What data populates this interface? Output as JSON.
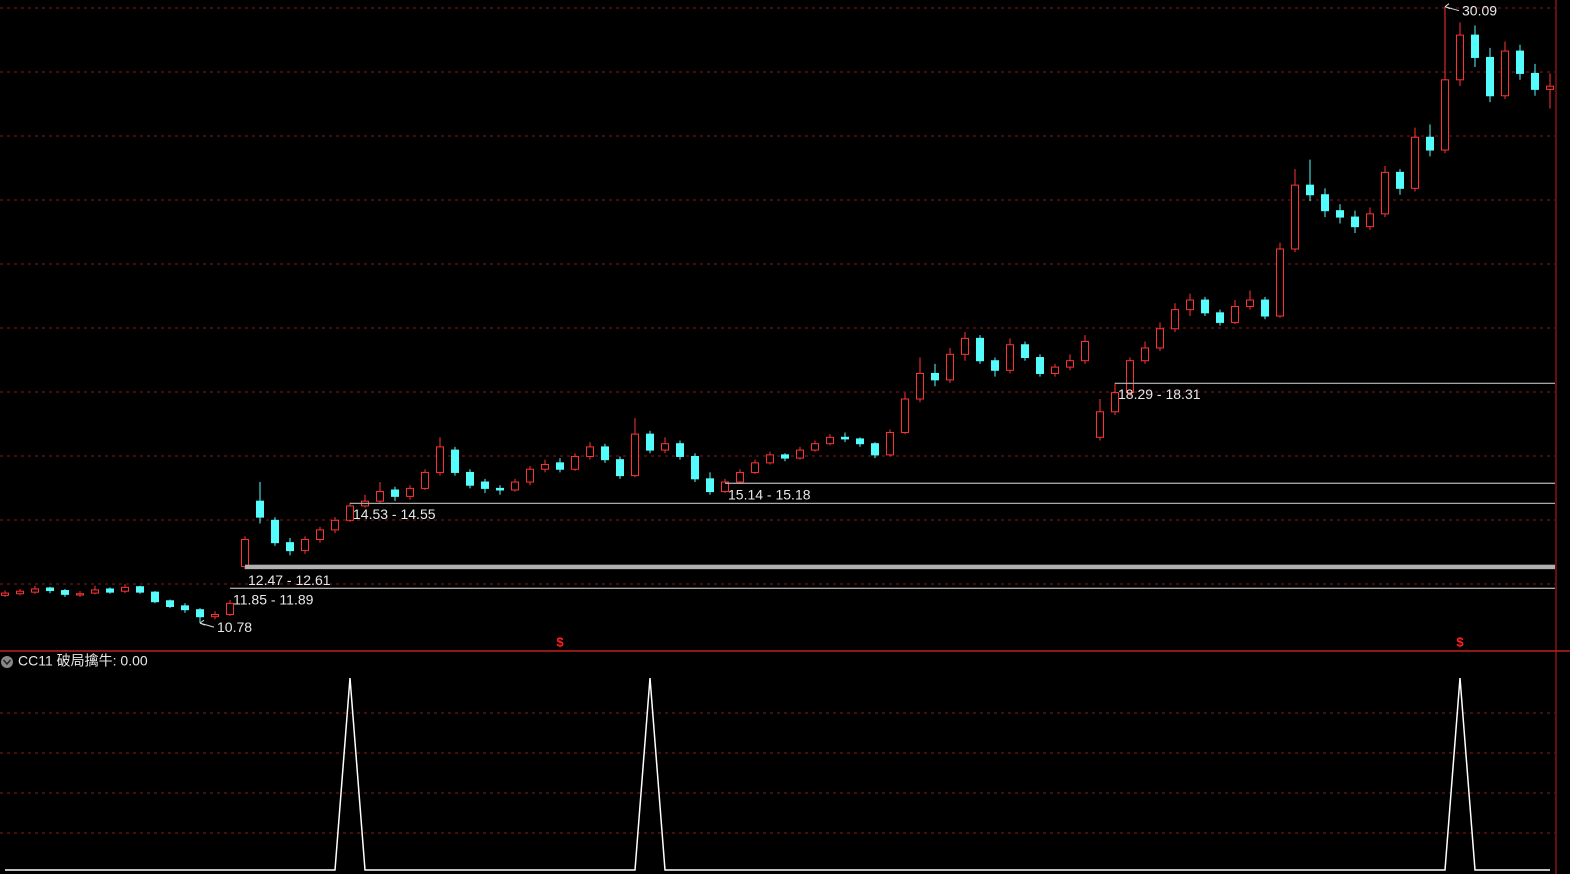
{
  "chart_data": {
    "type": "candlestick",
    "ylim": [
      10,
      30.3
    ],
    "grid": true,
    "up_color": "#ff3232",
    "down_color": "#54fcfc",
    "open": [
      11.65,
      11.7,
      11.75,
      11.88,
      11.8,
      11.66,
      11.72,
      11.85,
      11.78,
      11.92,
      11.75,
      11.48,
      11.32,
      11.2,
      10.98,
      11.05,
      12.55,
      14.6,
      14.0,
      13.3,
      13.05,
      13.4,
      13.7,
      14.0,
      14.45,
      14.6,
      14.95,
      14.75,
      15.0,
      15.5,
      16.2,
      15.5,
      15.2,
      15.0,
      14.95,
      15.2,
      15.6,
      15.8,
      15.6,
      16.0,
      16.3,
      15.9,
      15.4,
      16.7,
      16.2,
      16.4,
      16.0,
      15.3,
      14.9,
      15.2,
      15.5,
      15.8,
      16.05,
      15.95,
      16.2,
      16.4,
      16.6,
      16.55,
      16.4,
      16.05,
      16.75,
      17.8,
      18.6,
      18.4,
      19.2,
      19.7,
      19.0,
      18.7,
      19.5,
      19.1,
      18.6,
      18.8,
      19.0,
      16.6,
      17.4,
      18.0,
      19.0,
      19.4,
      20.0,
      20.6,
      20.9,
      20.5,
      20.2,
      20.7,
      20.9,
      20.4,
      22.5,
      24.5,
      24.2,
      23.7,
      23.5,
      23.2,
      23.6,
      24.9,
      24.4,
      26.0,
      25.6,
      27.8,
      29.2,
      28.5,
      27.3,
      28.7,
      28.0,
      27.5
    ],
    "high": [
      11.8,
      11.85,
      11.95,
      11.92,
      11.85,
      11.78,
      11.95,
      11.9,
      12.0,
      11.95,
      11.78,
      11.52,
      11.4,
      11.25,
      11.15,
      11.5,
      13.5,
      15.2,
      14.1,
      13.45,
      13.5,
      13.8,
      14.1,
      14.55,
      14.8,
      15.2,
      15.05,
      15.1,
      15.6,
      16.6,
      16.3,
      15.6,
      15.3,
      15.1,
      15.3,
      15.7,
      15.9,
      15.95,
      16.1,
      16.45,
      16.4,
      16.0,
      17.2,
      16.8,
      16.6,
      16.5,
      16.1,
      15.5,
      15.3,
      15.6,
      15.9,
      16.15,
      16.1,
      16.3,
      16.5,
      16.7,
      16.75,
      16.6,
      16.45,
      16.85,
      18.0,
      19.1,
      18.9,
      19.4,
      19.9,
      19.8,
      19.1,
      19.7,
      19.6,
      19.2,
      18.9,
      19.2,
      19.8,
      17.8,
      18.31,
      19.1,
      19.6,
      20.2,
      20.8,
      21.1,
      21.0,
      20.6,
      20.9,
      21.2,
      21.0,
      22.7,
      25.0,
      25.3,
      24.4,
      23.9,
      23.7,
      23.8,
      25.1,
      25.0,
      26.3,
      26.4,
      30.09,
      29.6,
      29.5,
      28.8,
      29.0,
      28.9,
      28.3,
      28.0
    ],
    "low": [
      11.6,
      11.65,
      11.7,
      11.72,
      11.6,
      11.6,
      11.68,
      11.7,
      11.72,
      11.7,
      11.4,
      11.25,
      11.1,
      10.78,
      10.9,
      11.0,
      12.47,
      13.9,
      13.2,
      12.9,
      12.95,
      13.3,
      13.6,
      13.95,
      14.4,
      14.55,
      14.6,
      14.65,
      14.95,
      15.4,
      15.4,
      15.0,
      14.85,
      14.8,
      14.9,
      15.1,
      15.5,
      15.5,
      15.55,
      15.9,
      15.8,
      15.3,
      15.35,
      16.1,
      16.1,
      15.9,
      15.2,
      14.8,
      14.85,
      15.14,
      15.45,
      15.75,
      15.85,
      15.9,
      16.15,
      16.35,
      16.45,
      16.3,
      15.95,
      16.0,
      16.7,
      17.7,
      18.2,
      18.3,
      19.0,
      18.9,
      18.5,
      18.6,
      19.0,
      18.5,
      18.5,
      18.7,
      18.9,
      16.5,
      17.3,
      17.9,
      18.9,
      19.3,
      19.9,
      20.4,
      20.4,
      20.1,
      20.15,
      20.6,
      20.3,
      20.35,
      22.4,
      24.0,
      23.5,
      23.3,
      23.0,
      23.1,
      23.5,
      24.2,
      24.3,
      25.4,
      25.5,
      27.6,
      28.2,
      27.1,
      27.2,
      27.8,
      27.3,
      26.9
    ],
    "close": [
      11.72,
      11.78,
      11.85,
      11.8,
      11.68,
      11.7,
      11.82,
      11.75,
      11.9,
      11.75,
      11.45,
      11.3,
      11.2,
      10.98,
      11.05,
      11.4,
      13.4,
      14.1,
      13.3,
      13.05,
      13.4,
      13.7,
      14.0,
      14.45,
      14.6,
      14.9,
      14.75,
      15.0,
      15.5,
      16.3,
      15.5,
      15.1,
      15.0,
      14.95,
      15.2,
      15.6,
      15.75,
      15.6,
      16.0,
      16.3,
      15.9,
      15.4,
      16.7,
      16.2,
      16.4,
      16.0,
      15.3,
      14.9,
      15.2,
      15.5,
      15.8,
      16.05,
      15.95,
      16.2,
      16.4,
      16.6,
      16.55,
      16.4,
      16.05,
      16.75,
      17.8,
      18.6,
      18.4,
      19.2,
      19.7,
      19.0,
      18.7,
      19.5,
      19.1,
      18.6,
      18.8,
      19.0,
      19.6,
      17.4,
      18.0,
      19.0,
      19.4,
      20.0,
      20.6,
      20.9,
      20.5,
      20.2,
      20.7,
      20.9,
      20.4,
      22.5,
      24.5,
      24.2,
      23.7,
      23.5,
      23.2,
      23.6,
      24.9,
      24.4,
      26.0,
      25.6,
      27.8,
      29.2,
      28.5,
      27.3,
      28.7,
      28.0,
      27.5,
      27.6
    ],
    "ranges": [
      {
        "index": 15,
        "low": 11.85,
        "high": 11.89,
        "label": "11.85 - 11.89"
      },
      {
        "index": 16,
        "low": 12.47,
        "high": 12.61,
        "label": "12.47 - 12.61"
      },
      {
        "index": 23,
        "low": 14.53,
        "high": 14.55,
        "label": "14.53 - 14.55"
      },
      {
        "index": 48,
        "low": 15.14,
        "high": 15.18,
        "label": "15.14 - 15.18"
      },
      {
        "index": 74,
        "low": 18.29,
        "high": 18.31,
        "label": "18.29 - 18.31"
      }
    ],
    "extremes": [
      {
        "index": 96,
        "value": 30.09,
        "label": "30.09"
      },
      {
        "index": 13,
        "value": 10.78,
        "label": "10.78"
      }
    ],
    "markers": [
      {
        "index": 37,
        "label": "$"
      },
      {
        "index": 97,
        "label": "$"
      }
    ],
    "indicator": {
      "title": "CC11  破局擒牛: 0.00",
      "color": "#ffffff",
      "ylim": [
        0,
        1
      ],
      "values": [
        0,
        0,
        0,
        0,
        0,
        0,
        0,
        0,
        0,
        0,
        0,
        0,
        0,
        0,
        0,
        0,
        0,
        0,
        0,
        0,
        0,
        0,
        0,
        1,
        0,
        0,
        0,
        0,
        0,
        0,
        0,
        0,
        0,
        0,
        0,
        0,
        0,
        0,
        0,
        0,
        0,
        0,
        0,
        1,
        0,
        0,
        0,
        0,
        0,
        0,
        0,
        0,
        0,
        0,
        0,
        0,
        0,
        0,
        0,
        0,
        0,
        0,
        0,
        0,
        0,
        0,
        0,
        0,
        0,
        0,
        0,
        0,
        0,
        0,
        0,
        0,
        0,
        0,
        0,
        0,
        0,
        0,
        0,
        0,
        0,
        0,
        0,
        0,
        0,
        0,
        0,
        0,
        0,
        0,
        0,
        0,
        0,
        1,
        0,
        0,
        0,
        0,
        0,
        0
      ]
    }
  }
}
